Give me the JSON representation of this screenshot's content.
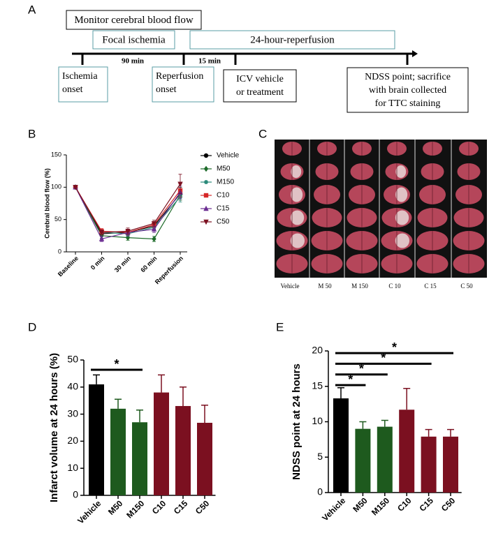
{
  "panel_labels": [
    "A",
    "B",
    "C",
    "D",
    "E"
  ],
  "timeline": {
    "phases": [
      "Monitor cerebral blood flow",
      "Focal ischemia",
      "24-hour-reperfusion"
    ],
    "intervals": [
      "90 min",
      "15 min"
    ],
    "events": [
      [
        "Ischemia",
        "onset"
      ],
      [
        "Reperfusion",
        "onset"
      ],
      [
        "ICV vehicle",
        "or treatment"
      ],
      [
        "NDSS point; sacrifice",
        "with brain collected",
        "for TTC staining"
      ]
    ]
  },
  "brain_slices": {
    "groups": [
      "Vehicle",
      "M 50",
      "M 150",
      "C 10",
      "C 15",
      "C 50"
    ]
  },
  "chart_data": [
    {
      "type": "line",
      "ylabel": "Cerebral blood flow  (%)",
      "categories": [
        "Baseline",
        "0 min",
        "30 min",
        "60 min",
        "Reperfusion"
      ],
      "ylim": [
        0,
        150
      ],
      "yticks": [
        0,
        50,
        100,
        150
      ],
      "series": [
        {
          "name": "Vehicle",
          "color": "#000000",
          "marker": "circle",
          "values": [
            100,
            28,
            30,
            40,
            90
          ],
          "errors": [
            0,
            4,
            4,
            5,
            10
          ]
        },
        {
          "name": "M50",
          "color": "#1e6b2a",
          "marker": "diamond",
          "values": [
            100,
            25,
            22,
            20,
            88
          ],
          "errors": [
            0,
            4,
            4,
            4,
            8
          ]
        },
        {
          "name": "M150",
          "color": "#2a8a7a",
          "marker": "hexagon",
          "values": [
            100,
            30,
            28,
            38,
            85
          ],
          "errors": [
            0,
            4,
            4,
            5,
            8
          ]
        },
        {
          "name": "C10",
          "color": "#d62728",
          "marker": "square",
          "values": [
            100,
            32,
            30,
            42,
            95
          ],
          "errors": [
            0,
            4,
            5,
            5,
            10
          ]
        },
        {
          "name": "C15",
          "color": "#6a2c91",
          "marker": "triangle-up",
          "values": [
            100,
            20,
            30,
            35,
            92
          ],
          "errors": [
            0,
            4,
            5,
            5,
            10
          ]
        },
        {
          "name": "C50",
          "color": "#7b1020",
          "marker": "triangle-down",
          "values": [
            100,
            30,
            32,
            44,
            105
          ],
          "errors": [
            0,
            4,
            5,
            5,
            15
          ]
        }
      ]
    },
    {
      "type": "bar",
      "ylabel": "Infarct volume at 24 hours  (%)",
      "categories": [
        "Vehicle",
        "M50",
        "M150",
        "C10",
        "C15",
        "C50"
      ],
      "values": [
        41,
        32,
        27,
        38,
        33,
        26.8
      ],
      "errors": [
        3.5,
        3.5,
        4.5,
        6.5,
        7,
        6.5
      ],
      "colors": [
        "#000000",
        "#1e5a1e",
        "#1e5a1e",
        "#7b1020",
        "#7b1020",
        "#7b1020"
      ],
      "ylim": [
        0,
        50
      ],
      "yticks": [
        0,
        10,
        20,
        30,
        40,
        50
      ],
      "significance": [
        {
          "from": 0,
          "to": 2,
          "label": "*"
        }
      ]
    },
    {
      "type": "bar",
      "ylabel": "NDSS point at 24 hours",
      "categories": [
        "Vehicle",
        "M50",
        "M150",
        "C10",
        "C15",
        "C50"
      ],
      "values": [
        13.3,
        9,
        9.3,
        11.7,
        7.9,
        7.9
      ],
      "errors": [
        1.5,
        1,
        0.9,
        3,
        1,
        1
      ],
      "colors": [
        "#000000",
        "#1e5a1e",
        "#1e5a1e",
        "#7b1020",
        "#7b1020",
        "#7b1020"
      ],
      "ylim": [
        0,
        20
      ],
      "yticks": [
        0,
        5,
        10,
        15,
        20
      ],
      "significance": [
        {
          "from": 0,
          "to": 1,
          "label": "*"
        },
        {
          "from": 0,
          "to": 2,
          "label": "*"
        },
        {
          "from": 0,
          "to": 4,
          "label": "*"
        },
        {
          "from": 0,
          "to": 5,
          "label": "*"
        }
      ]
    }
  ]
}
